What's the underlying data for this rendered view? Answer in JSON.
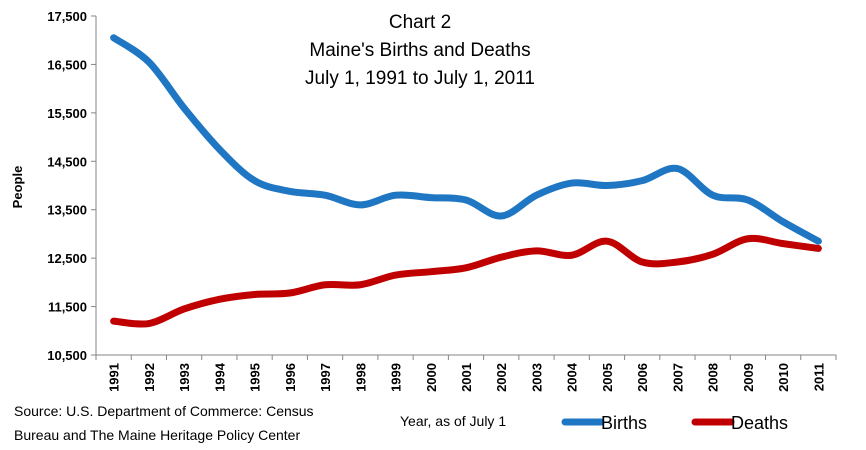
{
  "chart_data": {
    "type": "line",
    "title": [
      "Chart 2",
      "Maine's Births and Deaths",
      "July 1, 1991 to July 1, 2011"
    ],
    "ylabel": "People",
    "xlabel": "Year, as of July 1",
    "ylim": [
      10500,
      17500
    ],
    "yticks": [
      "10,500",
      "11,500",
      "12,500",
      "13,500",
      "14,500",
      "15,500",
      "16,500",
      "17,500"
    ],
    "ytick_values": [
      10500,
      11500,
      12500,
      13500,
      14500,
      15500,
      16500,
      17500
    ],
    "categories": [
      "1991",
      "1992",
      "1993",
      "1994",
      "1995",
      "1996",
      "1997",
      "1998",
      "1999",
      "2000",
      "2001",
      "2002",
      "2003",
      "2004",
      "2005",
      "2006",
      "2007",
      "2008",
      "2009",
      "2010",
      "2011"
    ],
    "series": [
      {
        "name": "Births",
        "color": "#1f77c4",
        "values": [
          17050,
          16550,
          15600,
          14750,
          14100,
          13880,
          13800,
          13600,
          13800,
          13750,
          13700,
          13370,
          13800,
          14050,
          14000,
          14100,
          14350,
          13800,
          13700,
          13250,
          12850
        ]
      },
      {
        "name": "Deaths",
        "color": "#c00000",
        "values": [
          11200,
          11150,
          11450,
          11650,
          11750,
          11780,
          11950,
          11950,
          12150,
          12220,
          12300,
          12520,
          12650,
          12560,
          12850,
          12420,
          12420,
          12580,
          12900,
          12800,
          12700
        ]
      }
    ],
    "legend": "bottom-right",
    "grid": false
  },
  "source": [
    "Source: U.S. Department of Commerce: Census",
    "Bureau and The Maine Heritage Policy Center"
  ]
}
